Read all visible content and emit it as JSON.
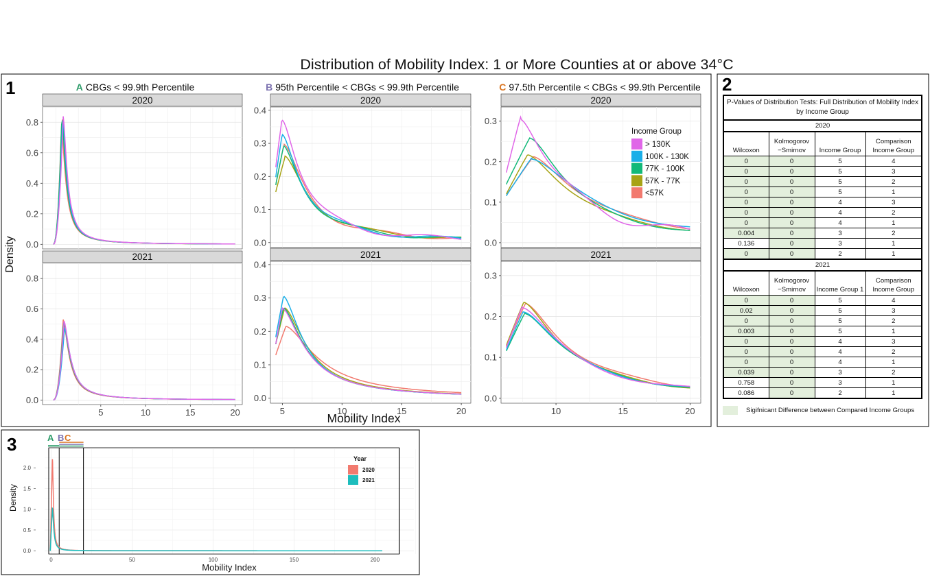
{
  "title": "Distribution of Mobility Index: 1 or More Counties at or above 34°C",
  "panel_labels": {
    "p1": "1",
    "p2": "2",
    "p3": "3"
  },
  "colors": {
    "income": [
      "#E066E8",
      "#1AAFE8",
      "#12B978",
      "#A7A315",
      "#F27A6F"
    ],
    "year": [
      "#F27A6F",
      "#1DBDBD"
    ],
    "letterA": "#2E9C6A",
    "letterB": "#7C72B0",
    "letterC": "#D9741F",
    "strip_bg": "#d9d9d9",
    "sig_fill": "#e3efdc"
  },
  "chart_data": [
    {
      "type": "line",
      "subtitle_letter": "A",
      "subtitle": "CBGs < 99.9th Percentile",
      "ylabel": "Density",
      "facets": [
        {
          "strip": "2020",
          "yticks": [
            "0.0",
            "0.2",
            "0.4",
            "0.6",
            "0.8"
          ],
          "ylim": [
            -0.03,
            0.9
          ]
        },
        {
          "strip": "2021",
          "yticks": [
            "0.0",
            "0.2",
            "0.4",
            "0.6",
            "0.8"
          ],
          "ylim": [
            -0.03,
            0.9
          ]
        }
      ],
      "xlim": [
        -1.5,
        20.8
      ],
      "xticks": [
        "5",
        "10",
        "15",
        "20"
      ]
    },
    {
      "type": "line",
      "subtitle_letter": "B",
      "subtitle": "95th Percentile < CBGs < 99.9th Percentile",
      "xlabel": "Mobility Index",
      "facets": [
        {
          "strip": "2020",
          "yticks": [
            "0.0",
            "0.1",
            "0.2",
            "0.3",
            "0.4"
          ],
          "ylim": [
            -0.015,
            0.41
          ]
        },
        {
          "strip": "2021",
          "yticks": [
            "0.0",
            "0.1",
            "0.2",
            "0.3",
            "0.4"
          ],
          "ylim": [
            -0.015,
            0.41
          ]
        }
      ],
      "xlim": [
        4.0,
        20.8
      ],
      "xticks": [
        "5",
        "10",
        "15",
        "20"
      ]
    },
    {
      "type": "line",
      "subtitle_letter": "C",
      "subtitle": "97.5th Percentile < CBGs < 99.9th Percentile",
      "facets": [
        {
          "strip": "2020",
          "yticks": [
            "0.0",
            "0.1",
            "0.2",
            "0.3"
          ],
          "ylim": [
            -0.012,
            0.335
          ]
        },
        {
          "strip": "2021",
          "yticks": [
            "0.0",
            "0.1",
            "0.2",
            "0.3"
          ],
          "ylim": [
            -0.012,
            0.335
          ]
        }
      ],
      "xlim": [
        5.9,
        20.8
      ],
      "xticks": [
        "10",
        "15",
        "20"
      ],
      "legend": {
        "title": "Income Group",
        "entries": [
          "> 130K",
          "100K - 130K",
          "77K - 100K",
          "57K - 77K",
          "<57K"
        ],
        "placement": "top-right inside 2020 facet"
      }
    },
    {
      "type": "line",
      "xlabel": "Mobility Index",
      "ylabel": "Density",
      "xticks": [
        "0",
        "50",
        "100",
        "150",
        "200"
      ],
      "yticks": [
        "0.0",
        "0.5",
        "1.0",
        "1.5",
        "2.0"
      ],
      "xlim": [
        -4,
        224
      ],
      "ylim": [
        -0.08,
        2.45
      ],
      "vlines": [
        5,
        20,
        215
      ],
      "series": [
        {
          "name": "2020",
          "peak_x": 0.8,
          "peak_y": 2.22
        },
        {
          "name": "2021",
          "peak_x": 0.8,
          "peak_y": 1.03
        }
      ],
      "range_bars": {
        "letters": [
          "A",
          "B",
          "C"
        ]
      },
      "legend": {
        "title": "Year",
        "entries": [
          "2020",
          "2021"
        ],
        "placement": "top-right"
      }
    }
  ],
  "table": {
    "title": "P-Values of Distribution Tests: Full Distribution of Mobility Index by Income Group",
    "sig_note": "Sigifnicant Difference between Compared Income Groups",
    "sections": [
      {
        "year": "2020",
        "headers": [
          "Wilcoxon",
          "Kolmogorov\n−Smirnov",
          "Income Group",
          "Comparison Income Group"
        ],
        "rows": [
          [
            "0",
            "0",
            "5",
            "4"
          ],
          [
            "0",
            "0",
            "5",
            "3"
          ],
          [
            "0",
            "0",
            "5",
            "2"
          ],
          [
            "0",
            "0",
            "5",
            "1"
          ],
          [
            "0",
            "0",
            "4",
            "3"
          ],
          [
            "0",
            "0",
            "4",
            "2"
          ],
          [
            "0",
            "0",
            "4",
            "1"
          ],
          [
            "0.004",
            "0",
            "3",
            "2"
          ],
          [
            "0.136",
            "0",
            "3",
            "1"
          ],
          [
            "0",
            "0",
            "2",
            "1"
          ]
        ],
        "sig": [
          [
            1,
            1
          ],
          [
            1,
            1
          ],
          [
            1,
            1
          ],
          [
            1,
            1
          ],
          [
            1,
            1
          ],
          [
            1,
            1
          ],
          [
            1,
            1
          ],
          [
            1,
            1
          ],
          [
            0,
            1
          ],
          [
            1,
            1
          ]
        ]
      },
      {
        "year": "2021",
        "headers": [
          "Wilcoxon",
          "Kolmogorov\n−Smirnov",
          "Income Group 1",
          "Comparison Income Group"
        ],
        "rows": [
          [
            "0",
            "0",
            "5",
            "4"
          ],
          [
            "0.02",
            "0",
            "5",
            "3"
          ],
          [
            "0",
            "0",
            "5",
            "2"
          ],
          [
            "0.003",
            "0",
            "5",
            "1"
          ],
          [
            "0",
            "0",
            "4",
            "3"
          ],
          [
            "0",
            "0",
            "4",
            "2"
          ],
          [
            "0",
            "0",
            "4",
            "1"
          ],
          [
            "0.039",
            "0",
            "3",
            "2"
          ],
          [
            "0.758",
            "0",
            "3",
            "1"
          ],
          [
            "0.086",
            "0",
            "2",
            "1"
          ]
        ],
        "sig": [
          [
            1,
            1
          ],
          [
            1,
            1
          ],
          [
            1,
            1
          ],
          [
            1,
            1
          ],
          [
            1,
            1
          ],
          [
            1,
            1
          ],
          [
            1,
            1
          ],
          [
            1,
            1
          ],
          [
            0,
            1
          ],
          [
            0,
            1
          ]
        ]
      }
    ]
  }
}
